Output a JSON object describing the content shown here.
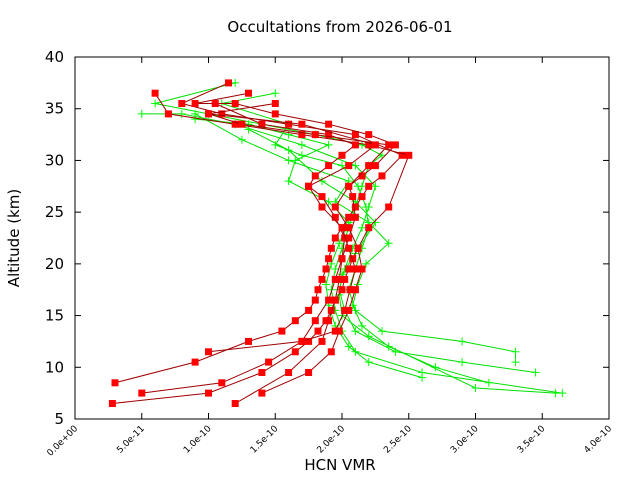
{
  "chart_data": {
    "type": "line",
    "title": "Occultations from 2026-06-01",
    "xlabel": "HCN VMR",
    "ylabel": "Altitude (km)",
    "xlim": [
      0,
      4e-10
    ],
    "ylim": [
      5,
      40
    ],
    "x_ticks": [
      0,
      5e-11,
      1e-10,
      1.5e-10,
      2e-10,
      2.5e-10,
      3e-10,
      3.5e-10,
      4e-10
    ],
    "x_tick_labels": [
      "0.0e+00",
      "5.0e-11",
      "1.0e-10",
      "1.5e-10",
      "2.0e-10",
      "2.5e-10",
      "3.0e-10",
      "3.5e-10",
      "4.0e-10"
    ],
    "y_ticks": [
      5,
      10,
      15,
      20,
      25,
      30,
      35,
      40
    ],
    "y_tick_labels": [
      "5",
      "10",
      "15",
      "20",
      "25",
      "30",
      "35",
      "40"
    ],
    "grid": false,
    "legend": "none",
    "series": [
      {
        "color": "#ff0000",
        "line_color": "#a00000",
        "marker": "square",
        "profiles": [
          {
            "x": [
              3e-11,
              9e-11,
              1.3e-10,
              1.55e-10,
              1.65e-10,
              1.75e-10,
              1.8e-10,
              1.82e-10,
              1.85e-10,
              1.88e-10,
              1.9e-10,
              1.92e-10,
              1.95e-10,
              2e-10,
              2.05e-10,
              2.1e-10,
              2.15e-10,
              2.2e-10,
              2.3e-10,
              2.45e-10,
              2.1e-10,
              1.6e-10,
              1.1e-10,
              8e-11,
              1.15e-10
            ],
            "y": [
              8.5,
              10.5,
              12.5,
              13.5,
              14.5,
              15.5,
              16.5,
              17.5,
              18.5,
              19.5,
              20.5,
              21.5,
              22.5,
              23.5,
              24.5,
              25.5,
              26.5,
              27.5,
              28.5,
              30.5,
              32.5,
              33.5,
              34.5,
              35.5,
              37.5
            ]
          },
          {
            "x": [
              2.8e-11,
              1e-10,
              1.4e-10,
              1.65e-10,
              1.75e-10,
              1.82e-10,
              1.88e-10,
              1.92e-10,
              1.95e-10,
              2e-10,
              2.02e-10,
              2.05e-10,
              2.08e-10,
              2.12e-10,
              2.2e-10,
              2.35e-10,
              2.5e-10,
              2.2e-10,
              1.7e-10,
              1.2e-10,
              7e-11,
              6e-11
            ],
            "y": [
              6.5,
              7.5,
              9.5,
              11.5,
              12.5,
              13.5,
              14.5,
              15.5,
              16.5,
              17.5,
              18.5,
              19.5,
              20.5,
              21.5,
              23.5,
              25.5,
              30.5,
              31.5,
              32.5,
              33.5,
              34.5,
              36.5
            ]
          },
          {
            "x": [
              5e-11,
              1.1e-10,
              1.45e-10,
              1.7e-10,
              1.8e-10,
              1.9e-10,
              1.95e-10,
              2e-10,
              2.05e-10,
              2.1e-10,
              2.08e-10,
              2.05e-10,
              2.15e-10,
              2.25e-10,
              2.4e-10,
              2.2e-10,
              1.9e-10,
              1.5e-10,
              1.2e-10,
              9e-11,
              1.3e-10
            ],
            "y": [
              7.5,
              8.5,
              10.5,
              12.5,
              14.5,
              16.5,
              18.5,
              20.5,
              22.5,
              24.5,
              26.5,
              27.5,
              28.5,
              29.5,
              31.5,
              32.5,
              33.5,
              34.5,
              35.5,
              35.5,
              36.5
            ]
          },
          {
            "x": [
              1.2e-10,
              1.6e-10,
              1.85e-10,
              1.9e-10,
              1.95e-10,
              1.98e-10,
              2e-10,
              2.02e-10,
              1.95e-10,
              1.85e-10,
              1.75e-10,
              1.8e-10,
              1.9e-10,
              2e-10,
              2.1e-10,
              1.9e-10,
              1.4e-10,
              1.05e-10
            ],
            "y": [
              6.5,
              9.5,
              12.5,
              14.5,
              16.5,
              18.5,
              20.5,
              22.5,
              24.5,
              26.5,
              27.5,
              28.5,
              29.5,
              30.5,
              31.5,
              32.5,
              33.5,
              35.5
            ]
          },
          {
            "x": [
              1.4e-10,
              1.75e-10,
              1.92e-10,
              1.98e-10,
              2.05e-10,
              2.1e-10,
              2.15e-10,
              2.12e-10,
              2.05e-10,
              1.95e-10,
              2.05e-10,
              2.2e-10,
              2.35e-10,
              1.8e-10,
              1.25e-10,
              1e-10,
              1.5e-10
            ],
            "y": [
              7.5,
              9.5,
              11.5,
              13.5,
              15.5,
              17.5,
              19.5,
              21.5,
              23.5,
              25.5,
              27.5,
              29.5,
              31.5,
              32.5,
              33.5,
              34.5,
              35.5
            ]
          },
          {
            "x": [
              1e-10,
              1.7e-10,
              1.95e-10,
              2.02e-10,
              2.06e-10,
              2.1e-10,
              2.05e-10,
              2e-10,
              1.85e-10,
              1.75e-10,
              2.05e-10,
              2.25e-10,
              1.7e-10,
              1e-10
            ],
            "y": [
              11.5,
              12.5,
              13.5,
              15.5,
              17.5,
              19.5,
              21.5,
              23.5,
              25.5,
              27.5,
              29.5,
              31.5,
              33.5,
              34.5
            ]
          }
        ]
      },
      {
        "color": "#00ff00",
        "line_color": "#00e000",
        "marker": "plus",
        "profiles": [
          {
            "x": [
              3.65e-10,
              2.6e-10,
              2.1e-10,
              2e-10,
              1.95e-10,
              1.92e-10,
              1.95e-10,
              2e-10,
              2.05e-10,
              2.1e-10,
              2.15e-10,
              2.2e-10,
              2.3e-10,
              2.15e-10,
              1.8e-10,
              1.4e-10,
              1e-10,
              6e-11,
              1.2e-10
            ],
            "y": [
              7.5,
              9.5,
              11.5,
              13.5,
              15.5,
              17.5,
              19.5,
              21.5,
              23.5,
              25.5,
              27.5,
              29.5,
              30.5,
              31.5,
              32.5,
              33.5,
              34.5,
              35.5,
              37.5
            ]
          },
          {
            "x": [
              3.45e-10,
              2.9e-10,
              2.4e-10,
              2.1e-10,
              2.02e-10,
              1.98e-10,
              2.02e-10,
              2.08e-10,
              2.15e-10,
              2.2e-10,
              2.25e-10,
              2.1e-10,
              1.7e-10,
              1.2e-10,
              8e-11,
              5e-11
            ],
            "y": [
              9.5,
              10.5,
              11.5,
              13.5,
              15.5,
              17.5,
              19.5,
              21.5,
              23.5,
              25.5,
              27.5,
              29.5,
              31.5,
              33.5,
              34.5,
              34.5
            ]
          },
          {
            "x": [
              3.3e-10,
              3.3e-10,
              2.9e-10,
              2.3e-10,
              2.1e-10,
              2.05e-10,
              2.1e-10,
              2.15e-10,
              2.2e-10,
              2.18e-10,
              2.12e-10,
              2e-10,
              1.7e-10,
              1.5e-10,
              1.6e-10,
              1.1e-10,
              1.5e-10
            ],
            "y": [
              10.5,
              11.5,
              12.5,
              13.5,
              15.5,
              17.5,
              19.5,
              21.5,
              23.5,
              25.5,
              27.5,
              29.5,
              30.5,
              31.5,
              33.5,
              35.5,
              36.5
            ]
          },
          {
            "x": [
              2.6e-10,
              2.2e-10,
              2.05e-10,
              1.95e-10,
              1.9e-10,
              1.88e-10,
              1.92e-10,
              1.98e-10,
              2.05e-10,
              1.9e-10,
              1.6e-10,
              1.65e-10,
              1.9e-10,
              1.6e-10,
              1.3e-10,
              9e-11
            ],
            "y": [
              9.0,
              10.5,
              12.0,
              14.0,
              16.0,
              18.0,
              20.0,
              22.0,
              24.0,
              26.0,
              28.0,
              30.0,
              31.5,
              32.5,
              33.5,
              34.0
            ]
          },
          {
            "x": [
              3.1e-10,
              2.7e-10,
              2.35e-10,
              2.15e-10,
              2.08e-10,
              2.12e-10,
              2.18e-10,
              2.35e-10,
              2.2e-10,
              1.95e-10,
              2.05e-10,
              1.6e-10,
              1.25e-10,
              9e-11
            ],
            "y": [
              8.5,
              10.0,
              12.0,
              14.0,
              16.0,
              18.0,
              20.0,
              22.0,
              24.0,
              26.0,
              28.0,
              30.0,
              32.0,
              34.5
            ]
          },
          {
            "x": [
              3.6e-10,
              3e-10,
              2.2e-10,
              2e-10,
              1.98e-10,
              2e-10,
              2.1e-10,
              2.25e-10,
              2.1e-10,
              1.85e-10,
              1.6e-10,
              1.3e-10
            ],
            "y": [
              7.5,
              8.0,
              13.0,
              15.0,
              17.0,
              19.0,
              21.0,
              24.0,
              26.0,
              28.0,
              31.0,
              33.0
            ]
          }
        ]
      }
    ]
  }
}
